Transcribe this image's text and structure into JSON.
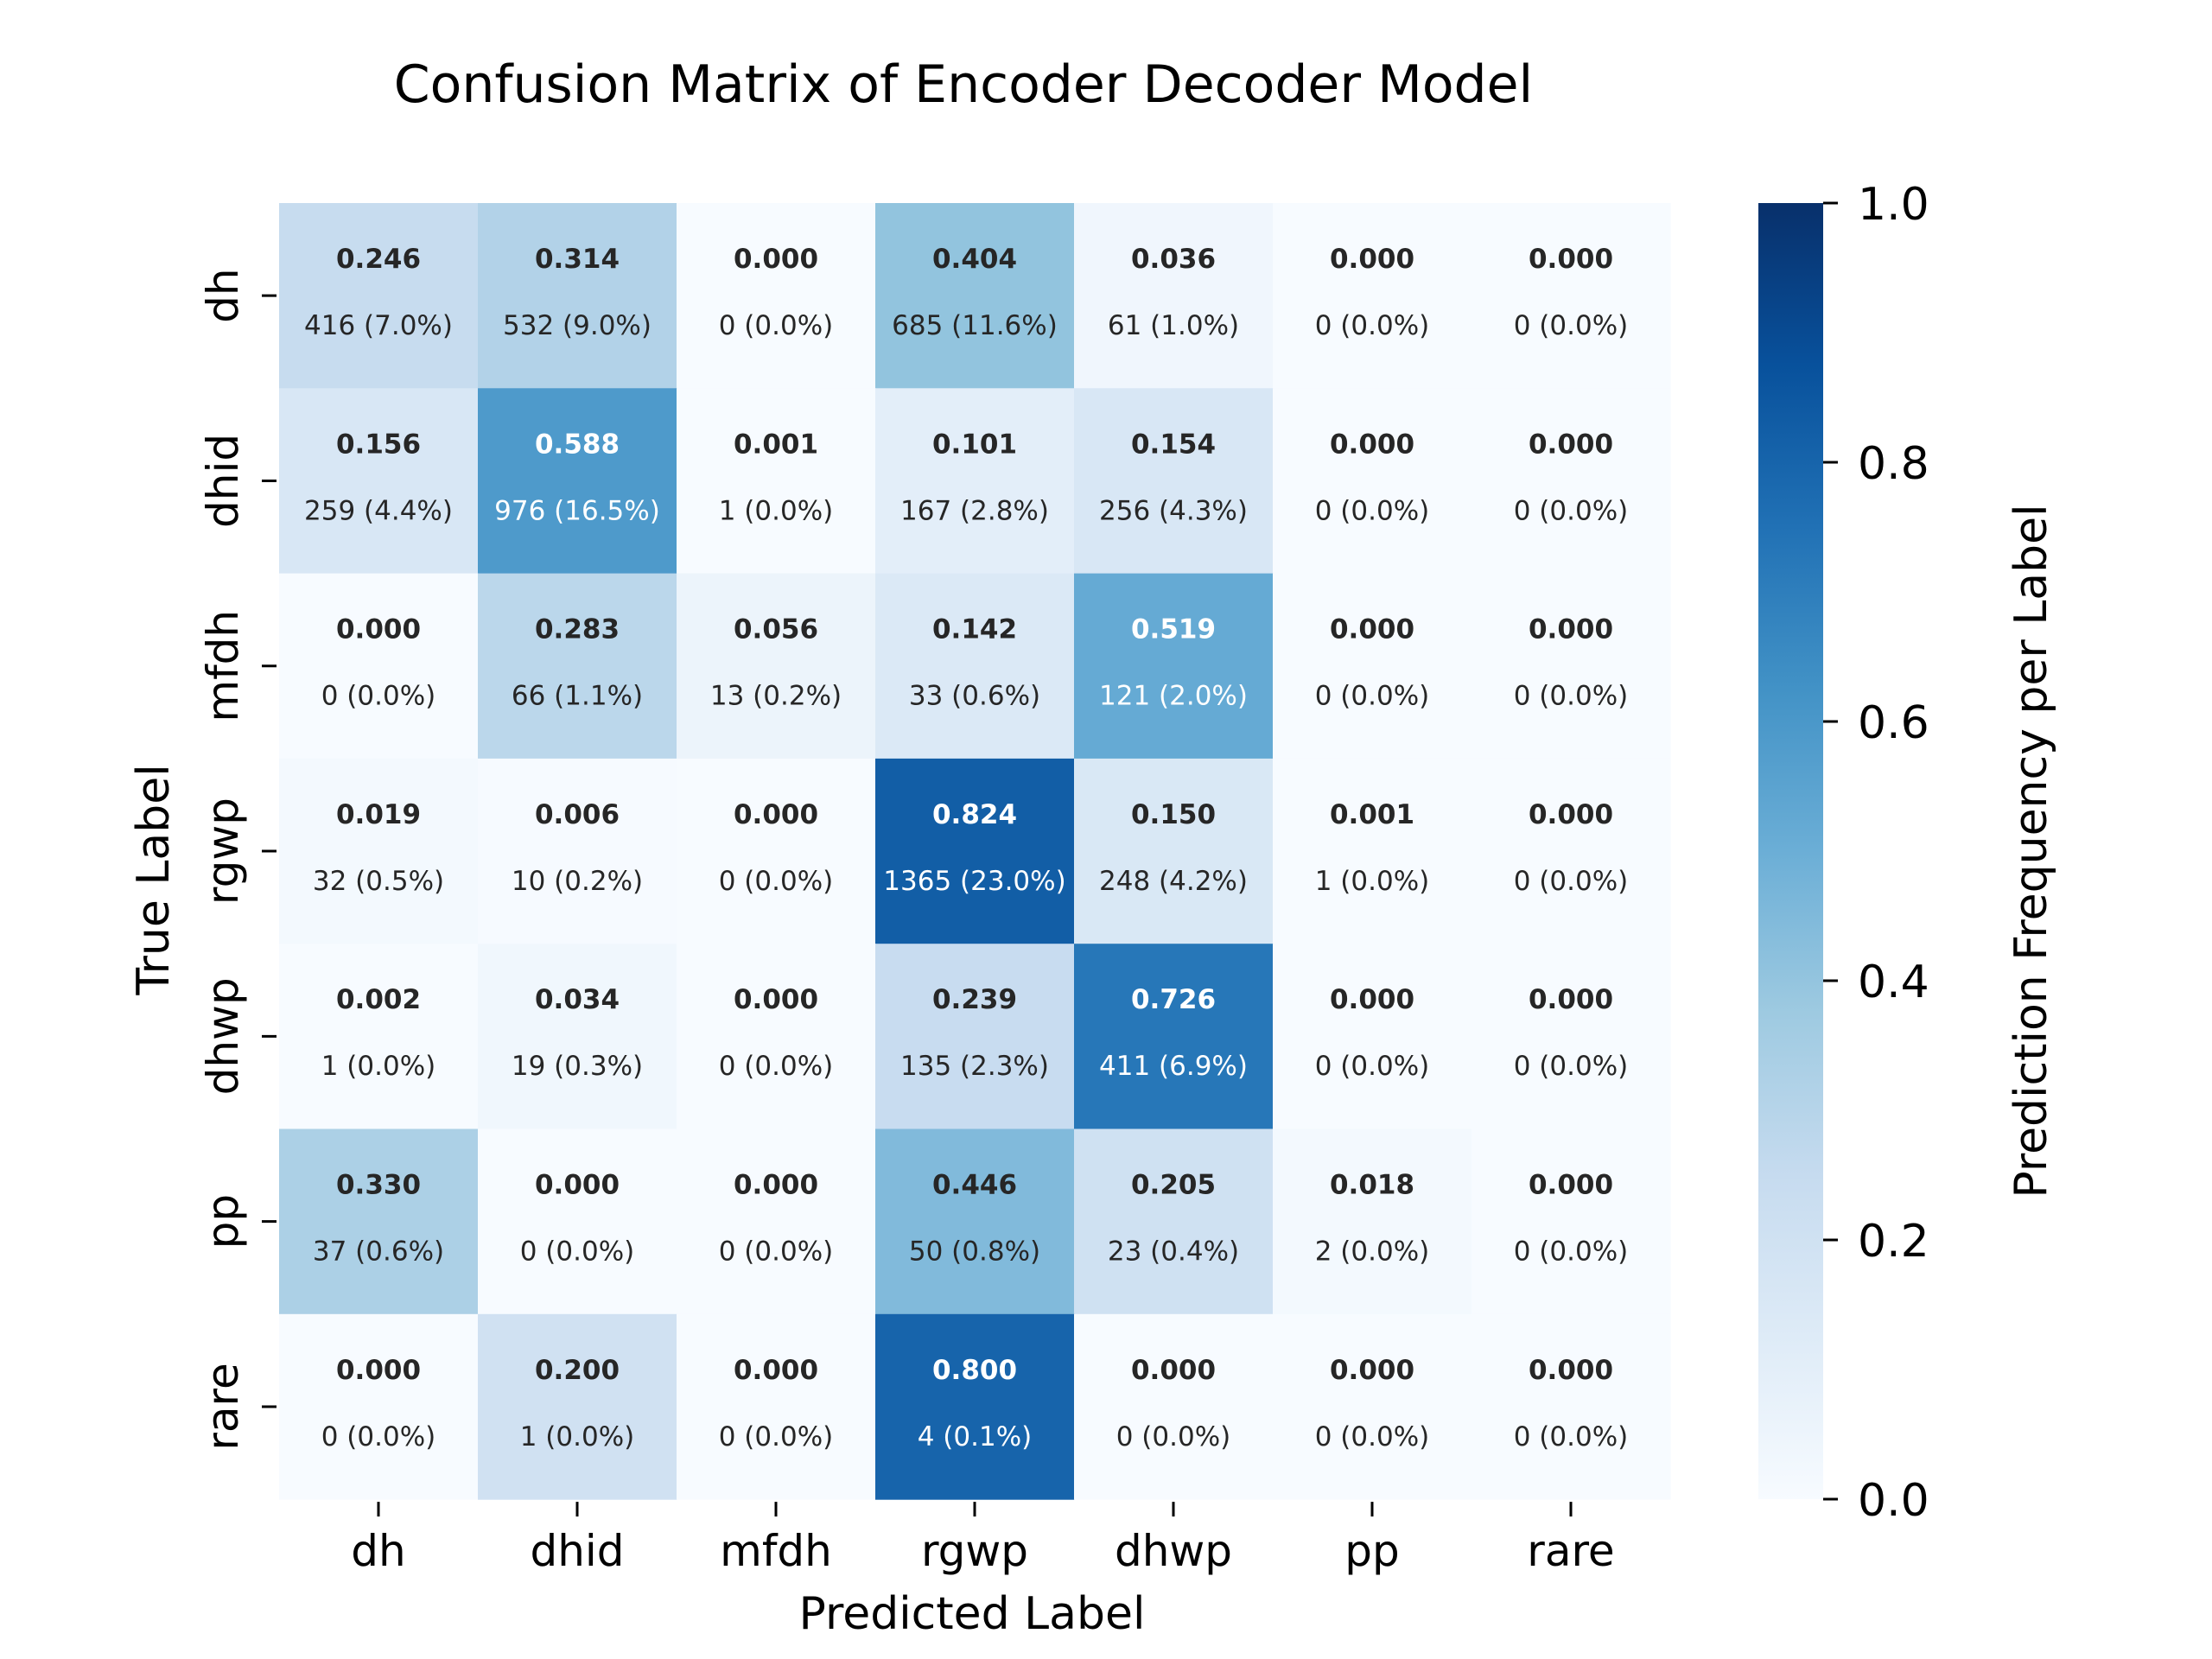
{
  "chart_data": {
    "type": "heatmap",
    "title": "Confusion Matrix of Encoder Decoder Model",
    "xlabel": "Predicted Label",
    "ylabel": "True Label",
    "colorbar_label": "Prediction Frequency per Label",
    "x_categories": [
      "dh",
      "dhid",
      "mfdh",
      "rgwp",
      "dhwp",
      "pp",
      "rare"
    ],
    "y_categories": [
      "dh",
      "dhid",
      "mfdh",
      "rgwp",
      "dhwp",
      "pp",
      "rare"
    ],
    "colorbar_range": [
      0.0,
      1.0
    ],
    "colorbar_ticks": [
      "0.0",
      "0.2",
      "0.4",
      "0.6",
      "0.8",
      "1.0"
    ],
    "colormap": "Blues",
    "values": [
      [
        "0.246",
        "0.314",
        "0.000",
        "0.404",
        "0.036",
        "0.000",
        "0.000"
      ],
      [
        "0.156",
        "0.588",
        "0.001",
        "0.101",
        "0.154",
        "0.000",
        "0.000"
      ],
      [
        "0.000",
        "0.283",
        "0.056",
        "0.142",
        "0.519",
        "0.000",
        "0.000"
      ],
      [
        "0.019",
        "0.006",
        "0.000",
        "0.824",
        "0.150",
        "0.001",
        "0.000"
      ],
      [
        "0.002",
        "0.034",
        "0.000",
        "0.239",
        "0.726",
        "0.000",
        "0.000"
      ],
      [
        "0.330",
        "0.000",
        "0.000",
        "0.446",
        "0.205",
        "0.018",
        "0.000"
      ],
      [
        "0.000",
        "0.200",
        "0.000",
        "0.800",
        "0.000",
        "0.000",
        "0.000"
      ]
    ],
    "counts": [
      [
        "416 (7.0%)",
        "532 (9.0%)",
        "0 (0.0%)",
        "685 (11.6%)",
        "61 (1.0%)",
        "0 (0.0%)",
        "0 (0.0%)"
      ],
      [
        "259 (4.4%)",
        "976 (16.5%)",
        "1 (0.0%)",
        "167 (2.8%)",
        "256 (4.3%)",
        "0 (0.0%)",
        "0 (0.0%)"
      ],
      [
        "0 (0.0%)",
        "66 (1.1%)",
        "13 (0.2%)",
        "33 (0.6%)",
        "121 (2.0%)",
        "0 (0.0%)",
        "0 (0.0%)"
      ],
      [
        "32 (0.5%)",
        "10 (0.2%)",
        "0 (0.0%)",
        "1365 (23.0%)",
        "248 (4.2%)",
        "1 (0.0%)",
        "0 (0.0%)"
      ],
      [
        "1 (0.0%)",
        "19 (0.3%)",
        "0 (0.0%)",
        "135 (2.3%)",
        "411 (6.9%)",
        "0 (0.0%)",
        "0 (0.0%)"
      ],
      [
        "37 (0.6%)",
        "0 (0.0%)",
        "0 (0.0%)",
        "50 (0.8%)",
        "23 (0.4%)",
        "2 (0.0%)",
        "0 (0.0%)"
      ],
      [
        "0 (0.0%)",
        "1 (0.0%)",
        "0 (0.0%)",
        "4 (0.1%)",
        "0 (0.0%)",
        "0 (0.0%)",
        "0 (0.0%)"
      ]
    ]
  }
}
